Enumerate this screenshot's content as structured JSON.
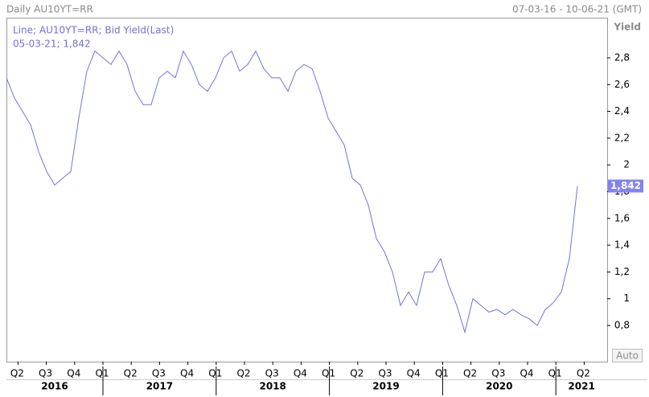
{
  "chart_data": {
    "type": "line",
    "title": "Daily AU10YT=RR",
    "date_range": "07-03-16 - 10-06-21 (GMT)",
    "y_label": "Yield",
    "legend_line1": "Line; AU10YT=RR; Bid Yield(Last)",
    "legend_line2": "05-03-21; 1,842",
    "scale_button": "Auto",
    "series": [
      {
        "name": "AU10YT=RR",
        "color": "#7272e6",
        "values": [
          2.65,
          2.5,
          2.4,
          2.3,
          2.1,
          1.95,
          1.85,
          1.9,
          1.95,
          2.35,
          2.7,
          2.85,
          2.8,
          2.75,
          2.85,
          2.75,
          2.55,
          2.45,
          2.45,
          2.65,
          2.7,
          2.65,
          2.85,
          2.75,
          2.6,
          2.55,
          2.65,
          2.8,
          2.85,
          2.7,
          2.75,
          2.85,
          2.72,
          2.65,
          2.65,
          2.55,
          2.7,
          2.75,
          2.72,
          2.55,
          2.35,
          2.25,
          2.15,
          1.9,
          1.85,
          1.7,
          1.45,
          1.35,
          1.2,
          0.95,
          1.05,
          0.95,
          1.2,
          1.2,
          1.3,
          1.1,
          0.95,
          0.75,
          1.0,
          0.95,
          0.9,
          0.92,
          0.88,
          0.92,
          0.88,
          0.85,
          0.8,
          0.92,
          0.97,
          1.05,
          1.3,
          1.842
        ],
        "last_value_label": "1,842"
      }
    ],
    "ylim": [
      0.53,
      3.1
    ],
    "yticks": [
      {
        "value": 0.8,
        "label": "0,8"
      },
      1,
      {
        "value": 1.2,
        "label": "1,2"
      },
      {
        "value": 1.4,
        "label": "1,4"
      },
      {
        "value": 1.6,
        "label": "1,6"
      },
      {
        "value": 1.8,
        "label": "1,8"
      },
      2,
      {
        "value": 2.2,
        "label": "2,2"
      },
      {
        "value": 2.4,
        "label": "2,4"
      },
      {
        "value": 2.6,
        "label": "2,6"
      },
      {
        "value": 2.8,
        "label": "2,8"
      }
    ],
    "quarters": [
      "Q2",
      "Q3",
      "Q4",
      "Q1",
      "Q2",
      "Q3",
      "Q4",
      "Q1",
      "Q2",
      "Q3",
      "Q4",
      "Q1",
      "Q2",
      "Q3",
      "Q4",
      "Q1",
      "Q2",
      "Q3",
      "Q4",
      "Q1",
      "Q2"
    ],
    "years": [
      "2016",
      "2017",
      "2018",
      "2019",
      "2020",
      "2021"
    ]
  }
}
